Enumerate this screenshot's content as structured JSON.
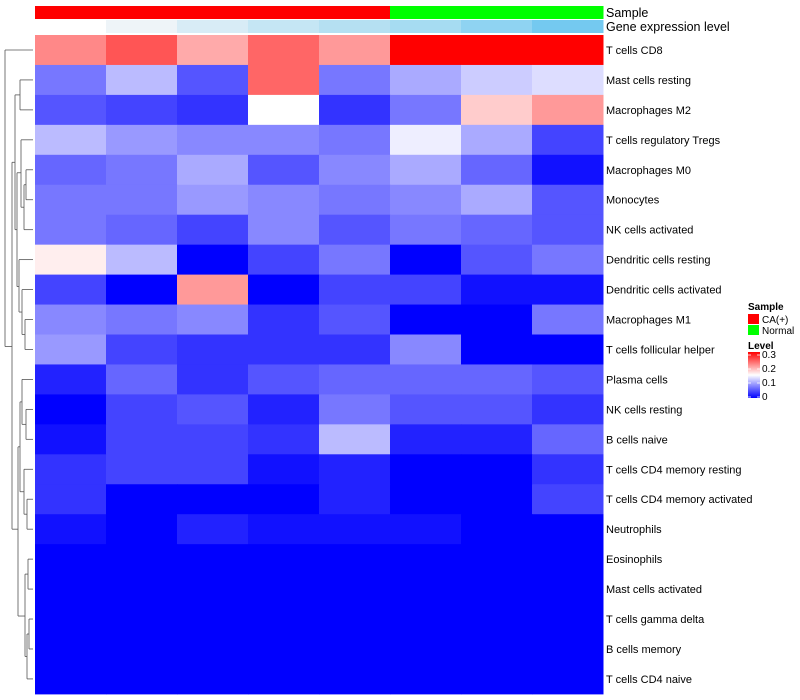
{
  "chart_data": {
    "type": "heatmap",
    "title": "",
    "annotations": {
      "sample_label": "Sample",
      "sample": [
        "CA(+)",
        "CA(+)",
        "CA(+)",
        "CA(+)",
        "CA(+)",
        "Normal",
        "Normal",
        "Normal"
      ],
      "gene_label": "Gene expression level",
      "gene_colors": [
        "#ffffff",
        "#eef4f8",
        "#d8ecf6",
        "#c5e6f4",
        "#b5e0f2",
        "#a6dcf2",
        "#8fd3f2",
        "#74c9f0"
      ]
    },
    "rows": [
      "T cells CD8",
      "Mast cells resting",
      "Macrophages M2",
      "T cells regulatory  Tregs",
      "Macrophages M0",
      "Monocytes",
      "NK cells activated",
      "Dendritic cells resting",
      "Dendritic cells activated",
      "Macrophages M1",
      "T cells follicular helper",
      "Plasma cells",
      "NK cells resting",
      "B cells naive",
      "T cells CD4 memory resting",
      "T cells CD4 memory activated",
      "Neutrophils",
      "Eosinophils",
      "Mast cells activated",
      "T cells gamma delta",
      "B cells memory",
      "T cells CD4 naive"
    ],
    "values": [
      [
        0.22,
        0.25,
        0.2,
        0.24,
        0.21,
        0.3,
        0.3,
        0.3
      ],
      [
        0.07,
        0.11,
        0.05,
        0.24,
        0.07,
        0.1,
        0.12,
        0.13
      ],
      [
        0.05,
        0.04,
        0.03,
        0.15,
        0.03,
        0.07,
        0.18,
        0.21
      ],
      [
        0.11,
        0.09,
        0.08,
        0.08,
        0.07,
        0.14,
        0.1,
        0.04
      ],
      [
        0.06,
        0.07,
        0.1,
        0.05,
        0.08,
        0.1,
        0.06,
        0.01
      ],
      [
        0.07,
        0.07,
        0.09,
        0.08,
        0.07,
        0.08,
        0.1,
        0.05
      ],
      [
        0.07,
        0.06,
        0.04,
        0.08,
        0.05,
        0.07,
        0.06,
        0.05
      ],
      [
        0.16,
        0.11,
        0.0,
        0.04,
        0.07,
        0.0,
        0.05,
        0.07
      ],
      [
        0.04,
        0.0,
        0.21,
        0.0,
        0.04,
        0.04,
        0.01,
        0.01
      ],
      [
        0.08,
        0.07,
        0.08,
        0.03,
        0.05,
        0.0,
        0.0,
        0.07
      ],
      [
        0.09,
        0.04,
        0.03,
        0.03,
        0.03,
        0.08,
        0.0,
        0.0
      ],
      [
        0.02,
        0.06,
        0.03,
        0.05,
        0.06,
        0.06,
        0.06,
        0.05
      ],
      [
        0.0,
        0.04,
        0.05,
        0.02,
        0.07,
        0.05,
        0.05,
        0.03
      ],
      [
        0.01,
        0.04,
        0.04,
        0.03,
        0.11,
        0.02,
        0.02,
        0.06
      ],
      [
        0.03,
        0.04,
        0.04,
        0.01,
        0.02,
        0.0,
        0.0,
        0.03
      ],
      [
        0.03,
        0.0,
        0.0,
        0.0,
        0.02,
        0.0,
        0.0,
        0.04
      ],
      [
        0.01,
        0.0,
        0.02,
        0.01,
        0.01,
        0.01,
        0.0,
        0.0
      ],
      [
        0.0,
        0.0,
        0.0,
        0.0,
        0.0,
        0.0,
        0.0,
        0.0
      ],
      [
        0.0,
        0.0,
        0.0,
        0.0,
        0.0,
        0.0,
        0.0,
        0.0
      ],
      [
        0.0,
        0.0,
        0.0,
        0.0,
        0.0,
        0.0,
        0.0,
        0.0
      ],
      [
        0.0,
        0.0,
        0.0,
        0.0,
        0.0,
        0.0,
        0.0,
        0.0
      ],
      [
        0.0,
        0.0,
        0.0,
        0.0,
        0.0,
        0.0,
        0.0,
        0.0
      ]
    ],
    "color_scale": {
      "low": "#0000ff",
      "mid": "#ffffff",
      "high": "#ff0000",
      "min": 0,
      "mid_value": 0.15,
      "max": 0.3
    },
    "legend": {
      "position": "right",
      "sample_title": "Sample",
      "sample_items": [
        {
          "label": "CA(+)",
          "color": "#ff0000"
        },
        {
          "label": "Normal",
          "color": "#00ff00"
        }
      ],
      "level_title": "Level",
      "level_ticks": [
        "0.3",
        "0.2",
        "0.1",
        "0"
      ]
    },
    "dendrogram": "rows"
  }
}
